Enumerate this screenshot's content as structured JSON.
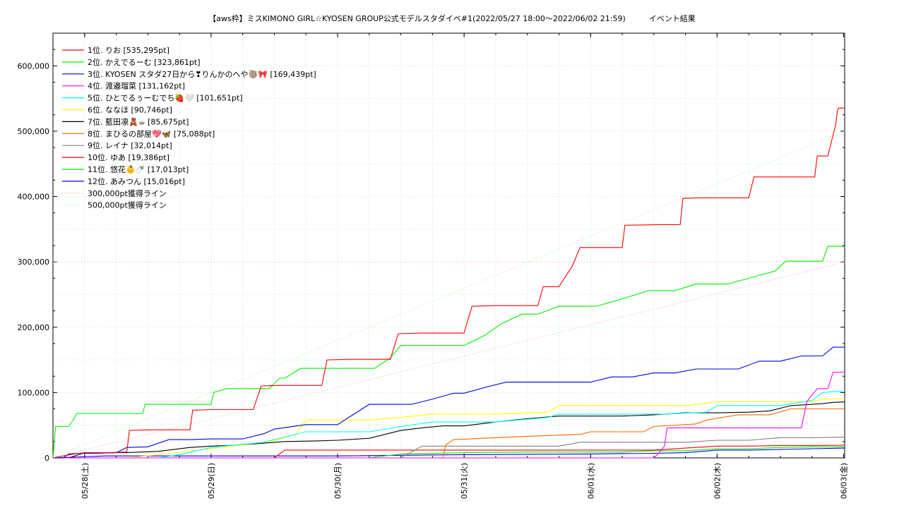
{
  "chart_data": {
    "type": "line",
    "title": "【aws枠】ミスKIMONO GIRL☆KYOSEN GROUP公式モデルスタダイベ#1(2022/05/27 18:00～2022/06/02 21:59)　　　イベント結果",
    "xlabel": "",
    "ylabel": "",
    "x_unit": "hours since 05/27 18:00",
    "xlim": [
      0,
      150.2
    ],
    "ylim": [
      0,
      650000
    ],
    "y_ticks": [
      0,
      100000,
      200000,
      300000,
      400000,
      500000,
      600000
    ],
    "y_tick_labels": [
      "0",
      "100,000",
      "200,000",
      "300,000",
      "400,000",
      "500,000",
      "600,000"
    ],
    "x_ticks": [
      6,
      30,
      54,
      78,
      102,
      126,
      150
    ],
    "x_tick_labels": [
      "05/28(土)",
      "05/29(日)",
      "05/30(月)",
      "05/31(火)",
      "06/01(水)",
      "06/02(木)",
      "06/03(金)"
    ],
    "grid": true,
    "legend_position": "top-left",
    "series": [
      {
        "name": "1位. りお [535,295pt]",
        "color": "#ff0000",
        "x": [
          0,
          2,
          4,
          6,
          10,
          14,
          14.5,
          18,
          26,
          26.5,
          30,
          38,
          39.5,
          43,
          51,
          52,
          56,
          64,
          65.5,
          70,
          78,
          79.5,
          84,
          92,
          93,
          96,
          98.5,
          100,
          108,
          108.5,
          115,
          119,
          119.5,
          122,
          132,
          133,
          135,
          144.5,
          145,
          147,
          148.5,
          148.8,
          149,
          150.2
        ],
        "y": [
          0,
          3000,
          6000,
          8000,
          8000,
          9000,
          42000,
          43000,
          43000,
          73000,
          74000,
          74000,
          110000,
          111000,
          111000,
          150000,
          151000,
          151000,
          190000,
          191000,
          191000,
          232000,
          233000,
          233000,
          262000,
          262000,
          293000,
          322000,
          322000,
          356000,
          357000,
          357000,
          397000,
          398000,
          398000,
          430000,
          430000,
          430000,
          462000,
          462000,
          510000,
          530000,
          535295,
          535295
        ]
      },
      {
        "name": "2位. かえでるーむ [323,861pt]",
        "color": "#00ee00",
        "x": [
          0,
          0.5,
          3,
          4,
          4.5,
          6,
          10,
          14,
          17,
          17.5,
          30,
          30.5,
          33,
          41,
          41.5,
          43,
          44,
          47,
          54,
          61,
          64,
          66,
          70,
          78,
          82,
          85,
          89,
          92,
          96,
          103,
          107,
          113,
          118,
          122,
          126,
          128,
          137,
          139,
          144,
          146,
          147,
          150.2
        ],
        "y": [
          0,
          48000,
          48000,
          60000,
          68000,
          68000,
          68000,
          68000,
          68000,
          82000,
          82000,
          100000,
          106000,
          106000,
          110000,
          122000,
          122000,
          137000,
          137000,
          137000,
          153000,
          172000,
          172000,
          172000,
          188000,
          205000,
          220000,
          220000,
          232000,
          232000,
          241000,
          256000,
          256000,
          266000,
          266000,
          266000,
          286000,
          301000,
          301000,
          301000,
          323861,
          323861
        ]
      },
      {
        "name": "3位. KYOSEN スタダ27日から❣りんかのへや🦥🎀 [169,439pt]",
        "color": "#0000dd",
        "x": [
          0,
          2,
          3,
          5,
          8,
          12,
          14,
          18,
          22,
          26,
          30,
          36,
          40,
          42,
          48,
          54,
          60,
          64,
          68,
          72,
          76,
          78,
          82,
          86,
          90,
          94,
          98,
          102,
          106,
          110,
          114,
          118,
          122,
          126,
          130,
          134,
          138,
          142,
          146,
          148,
          150.2
        ],
        "y": [
          0,
          0,
          6000,
          7000,
          7000,
          8000,
          16000,
          17000,
          28000,
          28000,
          29000,
          29000,
          37000,
          44000,
          51000,
          51000,
          82000,
          82000,
          82000,
          90000,
          99000,
          99000,
          108000,
          116000,
          116000,
          116000,
          116000,
          116000,
          124000,
          124000,
          130000,
          130000,
          136000,
          136000,
          136000,
          148000,
          148000,
          156000,
          156000,
          169439,
          169439
        ]
      },
      {
        "name": "4位. 渡邉瑠菜 [131,162pt]",
        "color": "#ff00ff",
        "x": [
          0,
          114,
          115,
          116,
          116.5,
          125,
          130,
          142,
          143,
          145,
          147,
          148,
          150.2
        ],
        "y": [
          0,
          0,
          8000,
          18000,
          46000,
          46000,
          46000,
          46000,
          86000,
          106000,
          106000,
          131162,
          131162
        ]
      },
      {
        "name": "5位. ひとでるぅーむでち🍓🤍 [101,651pt]",
        "color": "#00ffff",
        "x": [
          0,
          20,
          24,
          30,
          36,
          40,
          42,
          44,
          48,
          54,
          60,
          66,
          72,
          78,
          84,
          94,
          96,
          102,
          108,
          112,
          116,
          124,
          126,
          130,
          134,
          138,
          144,
          146,
          148,
          150.2
        ],
        "y": [
          0,
          0,
          5000,
          16000,
          21000,
          24000,
          28000,
          32000,
          40000,
          40000,
          40000,
          48000,
          55000,
          55000,
          55000,
          62000,
          67000,
          67000,
          67000,
          67000,
          67000,
          70000,
          80000,
          80000,
          80000,
          80000,
          88000,
          100000,
          101651,
          101651
        ]
      },
      {
        "name": "6位. ななほ [90,746pt]",
        "color": "#ffff00",
        "x": [
          0,
          14,
          20,
          30,
          36,
          42,
          46,
          48,
          54,
          60,
          66,
          72,
          78,
          84,
          94,
          96,
          102,
          108,
          114,
          120,
          126,
          132,
          138,
          144,
          146,
          150.2
        ],
        "y": [
          0,
          0,
          5000,
          14000,
          20000,
          26000,
          36000,
          58000,
          58000,
          58000,
          62000,
          67000,
          67000,
          67000,
          70000,
          80000,
          80000,
          80000,
          80000,
          80000,
          86000,
          86000,
          86000,
          86000,
          90000,
          90746
        ]
      },
      {
        "name": "7位. 藍田凛🧸☕ [85,675pt]",
        "color": "#000000",
        "x": [
          0,
          3,
          6,
          14,
          20,
          26,
          30,
          36,
          44,
          50,
          54,
          60,
          66,
          70,
          74,
          78,
          84,
          90,
          96,
          102,
          108,
          114,
          120,
          126,
          132,
          136,
          140,
          146,
          148,
          150.2
        ],
        "y": [
          0,
          0,
          8000,
          8000,
          10000,
          16000,
          18000,
          20000,
          25000,
          26000,
          27000,
          30000,
          42000,
          46000,
          49000,
          49000,
          55000,
          60000,
          64000,
          64000,
          64000,
          66000,
          69000,
          69000,
          70000,
          72000,
          80000,
          83000,
          85000,
          85675
        ]
      },
      {
        "name": "8位. まひるの部屋💖🦋 [75,088pt]",
        "color": "#ff6600",
        "x": [
          0,
          74,
          74.5,
          76,
          90,
          100,
          102,
          112,
          114,
          122,
          124,
          130,
          136,
          140,
          150.2
        ],
        "y": [
          0,
          0,
          20000,
          28000,
          33000,
          36000,
          40000,
          40000,
          48000,
          52000,
          58000,
          66000,
          66000,
          75000,
          75088
        ]
      },
      {
        "name": "9位. レイナ [32,014pt]",
        "color": "#808080",
        "x": [
          0,
          66,
          70,
          86,
          96,
          100,
          106,
          112,
          120,
          126,
          132,
          138,
          144,
          150.2
        ],
        "y": [
          0,
          0,
          18000,
          18000,
          18000,
          24000,
          24000,
          24000,
          24000,
          27000,
          27000,
          31000,
          31000,
          32014
        ]
      },
      {
        "name": "10位. ゆあ [19,386pt]",
        "color": "#ff0000",
        "x": [
          0,
          42,
          44,
          54,
          60,
          66,
          72,
          78,
          84,
          94,
          96,
          102,
          108,
          114,
          120,
          126,
          132,
          138,
          144,
          150.2
        ],
        "y": [
          0,
          0,
          12000,
          12000,
          12000,
          12000,
          12000,
          12000,
          12000,
          12000,
          12000,
          12000,
          12000,
          12000,
          15000,
          18000,
          18000,
          19000,
          19000,
          19386
        ]
      },
      {
        "name": "11位. 悠花👶🍼 [17,013pt]",
        "color": "#00ee00",
        "x": [
          0,
          60,
          66,
          78,
          90,
          102,
          108,
          114,
          120,
          126,
          132,
          138,
          144,
          150.2
        ],
        "y": [
          0,
          0,
          6000,
          8000,
          9000,
          9000,
          9000,
          11000,
          11000,
          14000,
          14000,
          16000,
          17000,
          17013
        ]
      },
      {
        "name": "12位. あみつん [15,016pt]",
        "color": "#0000dd",
        "x": [
          0,
          10,
          30,
          54,
          78,
          102,
          114,
          120,
          126,
          132,
          138,
          144,
          150.2
        ],
        "y": [
          0,
          3000,
          3000,
          3000,
          5000,
          6000,
          7000,
          8000,
          12000,
          12000,
          13000,
          14000,
          15016
        ]
      }
    ],
    "reference_lines": [
      {
        "name": "300,000pt獲得ライン",
        "color": "#ff9999",
        "x": [
          0,
          150.2
        ],
        "y": [
          0,
          300000
        ]
      },
      {
        "name": "500,000pt獲得ライン",
        "color": "#99ee99",
        "x": [
          0,
          150.2
        ],
        "y": [
          0,
          500000
        ]
      }
    ]
  }
}
